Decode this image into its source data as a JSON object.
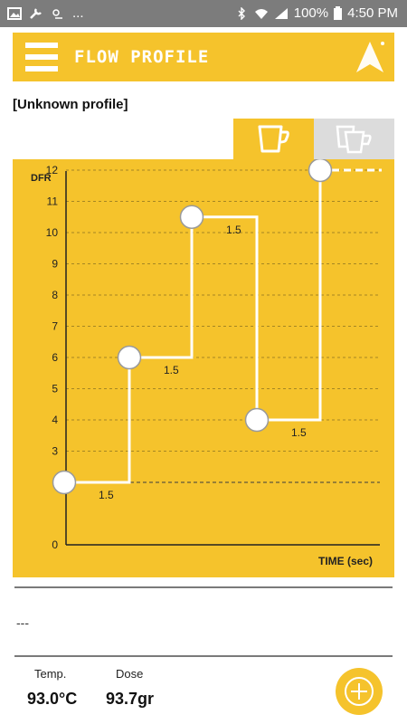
{
  "status_bar": {
    "left_text": "...",
    "battery": "100%",
    "time": "4:50 PM"
  },
  "app_bar": {
    "title": "FLOW PROFILE",
    "menu_icon": "hamburger-icon",
    "logo_icon": "arrow-logo-icon"
  },
  "profile": {
    "name": "[Unknown profile]"
  },
  "tabs": [
    {
      "name": "single-cup",
      "icon": "single-cup-icon",
      "selected": true
    },
    {
      "name": "double-cup",
      "icon": "double-cup-icon",
      "selected": false
    }
  ],
  "chart_data": {
    "type": "line",
    "ylabel": "DFR",
    "xlabel": "TIME (sec)",
    "yticks": [
      0,
      3,
      4,
      5,
      6,
      7,
      8,
      9,
      10,
      11,
      12
    ],
    "ylim": [
      0,
      12
    ],
    "baseline_dashed": 2,
    "steps": [
      {
        "value": 2,
        "duration_label": "1.5"
      },
      {
        "value": 6,
        "duration_label": "1.5"
      },
      {
        "value": 10.5,
        "duration_label": "1.5"
      },
      {
        "value": 4,
        "duration_label": "1.5"
      },
      {
        "value": 12,
        "duration_label": ""
      }
    ],
    "grid": true
  },
  "description": "---",
  "info": {
    "temp_label": "Temp.",
    "temp_value": "93.0°C",
    "dose_label": "Dose",
    "dose_value": "93.7gr"
  },
  "colors": {
    "accent": "#f5c32c",
    "status_bar": "#7c7c7c",
    "tab_inactive": "#dcdcdc"
  }
}
